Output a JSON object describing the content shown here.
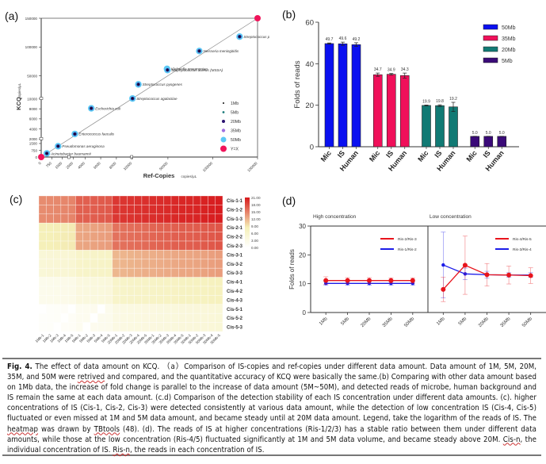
{
  "chart_data": [
    {
      "id": "a",
      "panel_label": "(a)",
      "type": "scatter",
      "xlabel": "Ref-Copies",
      "xlabel_unit": "copies/μL",
      "ylabel": "KCQ",
      "ylabel_unit": "copies/μL",
      "x_ticks": [
        "0",
        "750",
        "1500",
        "2500",
        "4000",
        "6000",
        "8000",
        "10000",
        "50000",
        "100000",
        "150000"
      ],
      "y_ticks": [
        "0",
        "750",
        "1500",
        "2000",
        "4000",
        "6000",
        "8000",
        "10000",
        "50000",
        "100000",
        "150000"
      ],
      "axis_break": "segmented scale with breaks",
      "legend": [
        "1Mb",
        "5Mb",
        "20Mb",
        "35Mb",
        "50Mb",
        "Y=X"
      ],
      "legend_colors": [
        "#111111",
        "#1a7a7a",
        "#2a1170",
        "#a070e0",
        "#5bc8f5",
        "#f0145a"
      ],
      "points": [
        {
          "label": "Acinetobacter baumannii",
          "x": 400,
          "y": 400
        },
        {
          "label": "Pseudomonas aeruginosa",
          "x": 1200,
          "y": 1200
        },
        {
          "label": "Enterococcus faecalis",
          "x": 2700,
          "y": 3000
        },
        {
          "label": "Escherichia coli",
          "x": 4800,
          "y": 8100
        },
        {
          "label": "Streptococcus agalactiae",
          "x": 10500,
          "y": 10500
        },
        {
          "label": "Streptococcus pyogenes",
          "x": 17000,
          "y": 35000
        },
        {
          "label": "Klebsiella pneumoniae",
          "x": 49000,
          "y": 62000
        },
        {
          "label": "Staphylococcus aureus (MSSA)",
          "x": 49500,
          "y": 60000
        },
        {
          "label": "Neisseria meningitidis",
          "x": 85000,
          "y": 93000
        },
        {
          "label": "Streptococcus pneumoniae",
          "x": 130000,
          "y": 118000
        }
      ],
      "reference_line": "Y=X",
      "xlim": [
        0,
        150000
      ],
      "ylim": [
        0,
        150000
      ]
    },
    {
      "id": "b",
      "panel_label": "(b)",
      "type": "bar",
      "ylabel": "Folds of reads",
      "ylim": [
        0,
        60
      ],
      "y_ticks": [
        "0",
        "20",
        "40",
        "60"
      ],
      "categories": [
        "Mic",
        "IS",
        "Human"
      ],
      "series": [
        {
          "name": "50Mb",
          "color": "#0a10f0",
          "values": [
            49.7,
            49.6,
            49.2
          ],
          "labels": [
            "49.7",
            "49.6",
            "49.2"
          ],
          "errors": [
            0.3,
            0.8,
            0.9
          ]
        },
        {
          "name": "35Mb",
          "color": "#f0105a",
          "values": [
            34.7,
            34.9,
            34.3
          ],
          "labels": [
            "34.7",
            "34.9",
            "34.3"
          ],
          "errors": [
            0.8,
            0.4,
            1.2
          ]
        },
        {
          "name": "20Mb",
          "color": "#117a74",
          "values": [
            19.9,
            19.8,
            19.2
          ],
          "labels": [
            "19.9",
            "19.8",
            "19.2"
          ],
          "errors": [
            0.2,
            0.4,
            2.2
          ]
        },
        {
          "name": "5Mb",
          "color": "#3a0a78",
          "values": [
            5.0,
            5.0,
            5.0
          ],
          "labels": [
            "5.0",
            "5.0",
            "5.0"
          ],
          "errors": [
            0.05,
            0.05,
            0.05
          ]
        }
      ],
      "legend": [
        "50Mb",
        "35Mb",
        "20Mb",
        "5Mb"
      ],
      "legend_placement": "top-right"
    },
    {
      "id": "c",
      "panel_label": "(c)",
      "type": "heatmap",
      "columns": [
        "1Mb-1",
        "1Mb-2",
        "1Mb-3",
        "1Mb-4",
        "1Mb-5",
        "5Mb-1",
        "5Mb-2",
        "5Mb-3",
        "5Mb-4",
        "5Mb-5",
        "20Mb-1",
        "20Mb-2",
        "20Mb-3",
        "20Mb-4",
        "20Mb-5",
        "35Mb-1",
        "35Mb-2",
        "35Mb-3",
        "35Mb-4",
        "35Mb-5",
        "50Mb-1",
        "50Mb-2",
        "50Mb-3",
        "50Mb-4",
        "50Mb-5"
      ],
      "rows": [
        "Cis-1-1",
        "Cis-1-2",
        "Cis-1-3",
        "Cis-2-1",
        "Cis-2-2",
        "Cis-2-3",
        "Cis-3-1",
        "Cis-3-2",
        "Cis-3-3",
        "Cis-4-1",
        "Cis-4-2",
        "Cis-4-3",
        "Cis-5-1",
        "Cis-5-2",
        "Cis-5-3"
      ],
      "group_levels": {
        "Cis-1": [
          14.5,
          17.0,
          19.5,
          20.0,
          20.5
        ],
        "Cis-2": [
          8.5,
          13.0,
          16.0,
          16.8,
          17.2
        ],
        "Cis-3": [
          5.0,
          6.5,
          12.0,
          12.5,
          13.0
        ],
        "Cis-4": [
          2.5,
          4.0,
          6.5,
          7.0,
          7.5
        ],
        "Cis-5": [
          0.8,
          2.0,
          3.5,
          4.0,
          4.5
        ]
      },
      "colorbar_ticks": [
        "21.00",
        "18.00",
        "15.00",
        "12.00",
        "9.00",
        "6.00",
        "3.00",
        "0.00"
      ],
      "color_range": [
        0,
        21
      ],
      "colors": {
        "low": "#ffffff",
        "mid": "#f5f0b8",
        "high": "#d7191c"
      }
    },
    {
      "id": "d",
      "panel_label": "(d)",
      "type": "line",
      "ylabel": "Folds of reads",
      "ylim": [
        0,
        30
      ],
      "y_ticks": [
        "0",
        "10",
        "20",
        "30"
      ],
      "x": [
        "1Mb",
        "5Mb",
        "20Mb",
        "35Mb",
        "50Mb"
      ],
      "subplots": [
        {
          "title": "High concentration",
          "series": [
            {
              "name": "Ris-2/Ris-3",
              "color": "#e8141c",
              "values": [
                11.1,
                11.1,
                11.1,
                11.1,
                11.1
              ],
              "errors": [
                1.3,
                1.0,
                1.0,
                0.9,
                0.9
              ]
            },
            {
              "name": "Ris-1/Ris-2",
              "color": "#1c1ce8",
              "values": [
                10.1,
                10.1,
                10.1,
                10.1,
                10.1
              ],
              "errors": [
                0.6,
                0.6,
                0.6,
                0.6,
                0.6
              ]
            }
          ]
        },
        {
          "title": "Low concentration",
          "series": [
            {
              "name": "Ris-4/Ris-5",
              "color": "#e8141c",
              "values": [
                8.0,
                16.4,
                13.1,
                13.0,
                12.8
              ],
              "errors": [
                4.2,
                10.1,
                3.9,
                3.1,
                2.7
              ]
            },
            {
              "name": "Ris-3/Ris-4",
              "color": "#1c1ce8",
              "values": [
                16.5,
                13.4,
                13.1,
                13.0,
                13.0
              ],
              "errors": [
                11.4,
                2.0,
                1.2,
                0.8,
                0.8
              ]
            }
          ]
        }
      ]
    }
  ],
  "caption": {
    "fig_label": "Fig. 4.",
    "segments": [
      {
        "text": " The effect of data amount on KCQ. （a）Comparison of IS-copies and ref-copies under different data amount. Data amount of 1M, 5M, 20M, 35M, and 50M were ",
        "flag": false
      },
      {
        "text": "retrived",
        "flag": true
      },
      {
        "text": " and compared, and the quantitative accuracy of KCQ were basically the same.(b) Comparing with other data amount based on 1Mb data, the increase of fold change is parallel to the increase of data amount (5M~50M), and detected reads of microbe, human background and IS remain the same at each data amount. (c.d) Comparison of the detection stability of each IS concentration under different data amounts. (c). higher concentrations of IS (Cis-1, Cis-2, Cis-3) were detected consistently at various data amount, while the detection of low concentration IS (Cis-4, Cis-5) fluctuated or even missed at 1M and 5M data amount, and became steady until at 20M data amount. Legend, take the logarithm of the reads of IS. The ",
        "flag": false
      },
      {
        "text": "heatmap",
        "flag": true
      },
      {
        "text": " was drawn by ",
        "flag": false
      },
      {
        "text": "TBtools",
        "flag": true
      },
      {
        "text": " (48). (d). The reads of IS at higher concentrations (Ris-1/2/3) has a stable ratio between them under different data amounts, while those at the low concentration (Ris-4/5) fluctuated significantly at 1M and 5M data volume, and became steady above 20M. ",
        "flag": false
      },
      {
        "text": "Cis-n",
        "flag": true
      },
      {
        "text": ", the individual concentration of IS. ",
        "flag": false
      },
      {
        "text": "Ris-n",
        "flag": true
      },
      {
        "text": ", the reads in each concentration of IS.",
        "flag": false
      }
    ]
  }
}
